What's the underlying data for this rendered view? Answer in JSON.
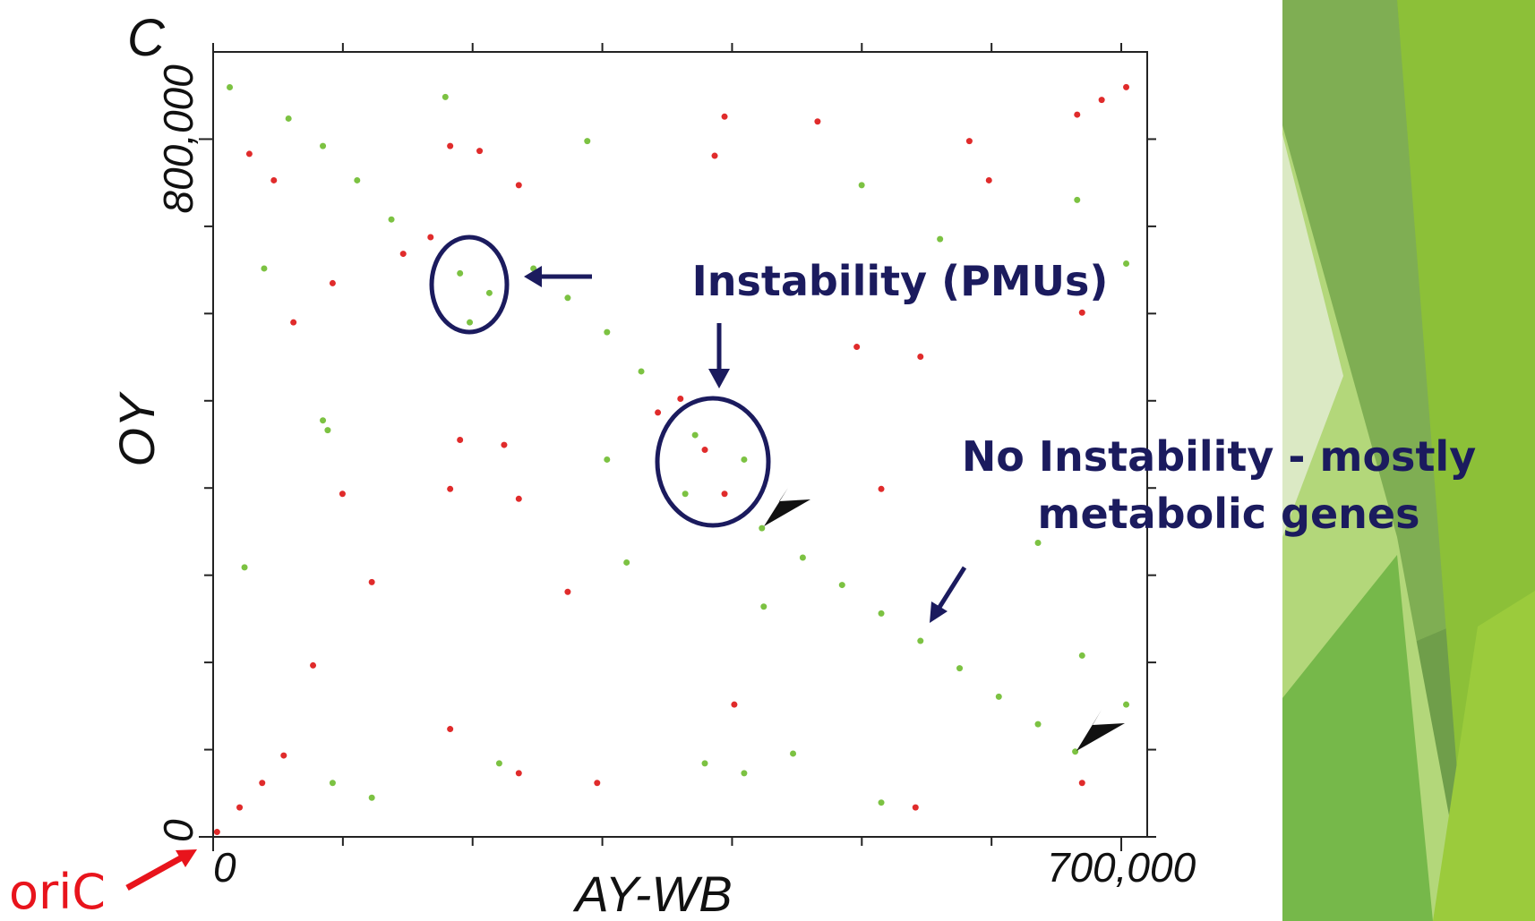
{
  "chart_data": {
    "type": "scatter",
    "panel_label": "C",
    "x_label": "AY-WB",
    "y_label": "OY",
    "xlim": [
      0,
      720000
    ],
    "ylim": [
      0,
      900000
    ],
    "xticks": [
      {
        "value": 0,
        "label": "0"
      },
      {
        "value": 700000,
        "label": "700,000"
      }
    ],
    "yticks": [
      {
        "value": 0,
        "label": "0"
      },
      {
        "value": 800000,
        "label": "800,000"
      }
    ],
    "xminorticks": [
      100000,
      200000,
      300000,
      400000,
      500000,
      600000
    ],
    "yminorticks": [
      100000,
      200000,
      300000,
      400000,
      500000,
      600000,
      700000
    ],
    "series": [
      {
        "color": "#e02b2b",
        "x": [
          146500,
          167600,
          342800,
          360200,
          666000,
          684900,
          703800,
          3000,
          20400,
          37800,
          54400,
          27900,
          46800,
          61900,
          92100,
          182700,
          205400,
          235600,
          394200,
          386600,
          465900,
          582900,
          598000,
          122300,
          273300,
          496100,
          545200,
          669800,
          77000,
          182700,
          235600,
          296000,
          401700,
          541400,
          669800,
          190300,
          224300,
          182700,
          235600,
          379000,
          394200,
          515000,
          99700
        ],
        "y": [
          668500,
          687600,
          486500,
          502300,
          828100,
          845000,
          859600,
          5600,
          33700,
          61800,
          93300,
          783100,
          752800,
          589900,
          634800,
          792100,
          786500,
          747200,
          825800,
          780900,
          820200,
          797800,
          752800,
          292100,
          280900,
          561800,
          550600,
          601100,
          196600,
          123600,
          73000,
          61800,
          151700,
          33700,
          61800,
          455100,
          449400,
          398900,
          387600,
          443800,
          393300,
          398900,
          393300
        ]
      },
      {
        "color": "#7cc242",
        "x": [
          423000,
          454500,
          484800,
          515000,
          545200,
          575400,
          605600,
          635800,
          664500,
          58100,
          84600,
          111000,
          137400,
          246900,
          273300,
          303600,
          330000,
          12800,
          24200,
          39300,
          84600,
          92100,
          122300,
          179000,
          212900,
          220500,
          288400,
          303600,
          379000,
          409300,
          424400,
          447000,
          499900,
          560300,
          666000,
          703800,
          669800,
          703800,
          515000,
          190300,
          197800,
          371500,
          409300,
          363900,
          88300,
          635800,
          318700
        ],
        "y": [
          353900,
          320200,
          288800,
          256200,
          224700,
          193300,
          160700,
          129200,
          97800,
          823600,
          792100,
          752800,
          707900,
          651700,
          618000,
          578700,
          533700,
          859500,
          309000,
          651700,
          477500,
          61800,
          44900,
          848300,
          623600,
          84300,
          797800,
          432600,
          84300,
          73000,
          264000,
          95500,
          747200,
          685400,
          730300,
          657300,
          207900,
          151700,
          39300,
          646100,
          589900,
          460700,
          432600,
          393300,
          466300,
          337100,
          314600
        ]
      }
    ],
    "annotations": [
      "Instability (PMUs)",
      "No Instability - mostly",
      "metabolic genes",
      "oriC"
    ]
  }
}
